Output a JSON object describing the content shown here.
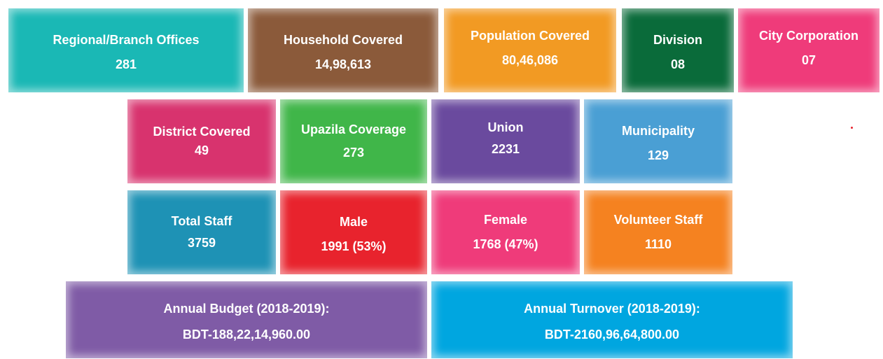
{
  "rows": [
    {
      "tiles": [
        {
          "title": "Regional/Branch Offices",
          "value": "281"
        },
        {
          "title": "Household Covered",
          "value": "14,98,613"
        },
        {
          "title": "Population Covered",
          "value": "80,46,086"
        },
        {
          "title": "Division",
          "value": "08"
        },
        {
          "title": "City Corporation",
          "value": "07"
        }
      ]
    },
    {
      "tiles": [
        {
          "title": "District Covered",
          "value": "49"
        },
        {
          "title": "Upazila Coverage",
          "value": "273"
        },
        {
          "title": "Union",
          "value": "2231"
        },
        {
          "title": "Municipality",
          "value": "129"
        }
      ]
    },
    {
      "tiles": [
        {
          "title": "Total Staff",
          "value": "3759"
        },
        {
          "title": "Male",
          "value": "1991 (53%)"
        },
        {
          "title": "Female",
          "value": "1768 (47%)"
        },
        {
          "title": "Volunteer Staff",
          "value": "1110"
        }
      ]
    },
    {
      "tiles": [
        {
          "title": "Annual Budget (2018-2019):",
          "value": "BDT-188,22,14,960.00"
        },
        {
          "title": "Annual Turnover (2018-2019):",
          "value": "BDT-2160,96,64,800.00"
        }
      ]
    }
  ]
}
